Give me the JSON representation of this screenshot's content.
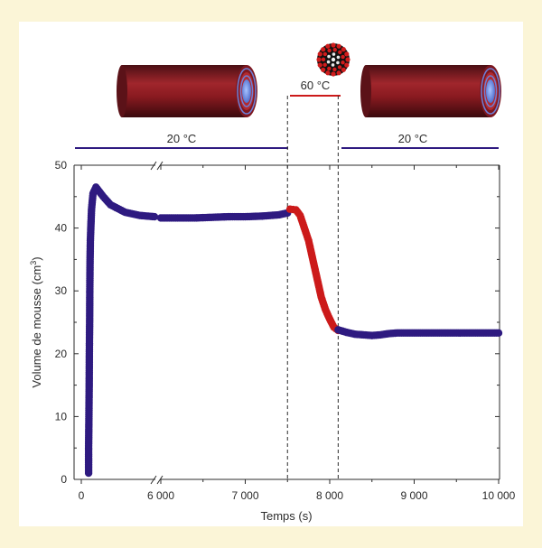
{
  "chart_data": {
    "type": "scatter",
    "title": "",
    "xlabel": "Temps (s)",
    "ylabel": "Volume de mousse (cm3)",
    "ylabel_main": "Volume de mousse (cm",
    "ylabel_sup": "3",
    "ylabel_close": ")",
    "ylim": [
      0,
      50
    ],
    "xlim": [
      0,
      10000
    ],
    "x_axis_break_between": [
      500,
      6000
    ],
    "x_ticks": [
      0,
      6000,
      7000,
      8000,
      9000,
      10000
    ],
    "x_tick_labels": [
      "0",
      "6 000",
      "7 000",
      "8 000",
      "9 000",
      "10 000"
    ],
    "y_ticks": [
      0,
      10,
      20,
      30,
      40,
      50
    ],
    "y_tick_labels": [
      "0",
      "10",
      "20",
      "30",
      "40",
      "50"
    ],
    "grid": false,
    "series": [
      {
        "color": "#2e1a80",
        "points": [
          [
            50,
            1
          ],
          [
            50,
            5
          ],
          [
            52,
            10
          ],
          [
            54,
            15
          ],
          [
            55,
            20
          ],
          [
            57,
            25
          ],
          [
            58,
            30
          ],
          [
            60,
            35
          ],
          [
            62,
            38
          ],
          [
            65,
            40
          ],
          [
            70,
            43
          ],
          [
            80,
            45.5
          ],
          [
            100,
            46.5
          ],
          [
            150,
            45
          ],
          [
            200,
            43.7
          ],
          [
            300,
            42.5
          ],
          [
            400,
            42
          ],
          [
            500,
            41.8
          ],
          [
            6000,
            41.6
          ],
          [
            6200,
            41.6
          ],
          [
            6400,
            41.6
          ],
          [
            6600,
            41.7
          ],
          [
            6800,
            41.8
          ],
          [
            7000,
            41.8
          ],
          [
            7200,
            41.9
          ],
          [
            7400,
            42.1
          ],
          [
            7500,
            42.4
          ]
        ]
      },
      {
        "color": "#cc1a1a",
        "points": [
          [
            7530,
            43
          ],
          [
            7600,
            42.9
          ],
          [
            7650,
            42
          ],
          [
            7700,
            40
          ],
          [
            7750,
            38
          ],
          [
            7800,
            35
          ],
          [
            7850,
            32
          ],
          [
            7900,
            29
          ],
          [
            7950,
            27
          ],
          [
            8000,
            25.5
          ],
          [
            8050,
            24.2
          ],
          [
            8100,
            23.7
          ]
        ]
      },
      {
        "color": "#2e1a80",
        "points": [
          [
            8100,
            23.8
          ],
          [
            8200,
            23.4
          ],
          [
            8300,
            23.1
          ],
          [
            8400,
            23
          ],
          [
            8500,
            22.9
          ],
          [
            8600,
            23
          ],
          [
            8700,
            23.2
          ],
          [
            8800,
            23.3
          ],
          [
            9000,
            23.3
          ],
          [
            9200,
            23.3
          ],
          [
            9400,
            23.3
          ],
          [
            9600,
            23.3
          ],
          [
            9800,
            23.3
          ],
          [
            10000,
            23.3
          ]
        ]
      }
    ],
    "phase_boundaries_x": [
      7500,
      8100
    ],
    "temperature_phases": [
      {
        "label": "20 °C",
        "x_from": 0,
        "x_to": 7500,
        "color": "#2e1a80"
      },
      {
        "label": "60 °C",
        "x_from": 7500,
        "x_to": 8100,
        "color": "#cc1a1a"
      },
      {
        "label": "20 °C",
        "x_from": 8100,
        "x_to": 10000,
        "color": "#2e1a80"
      }
    ]
  },
  "illustrations": [
    {
      "icon": "foam-tube-icon",
      "phase": "20 °C"
    },
    {
      "icon": "micelle-sphere-icon",
      "phase": "60 °C"
    },
    {
      "icon": "foam-tube-icon",
      "phase": "20 °C"
    }
  ],
  "colors": {
    "page_background": "#fbf5d7",
    "panel_background": "#ffffff",
    "cold_series": "#2e1a80",
    "hot_series": "#cc1a1a",
    "axis": "#2b2b2b"
  }
}
